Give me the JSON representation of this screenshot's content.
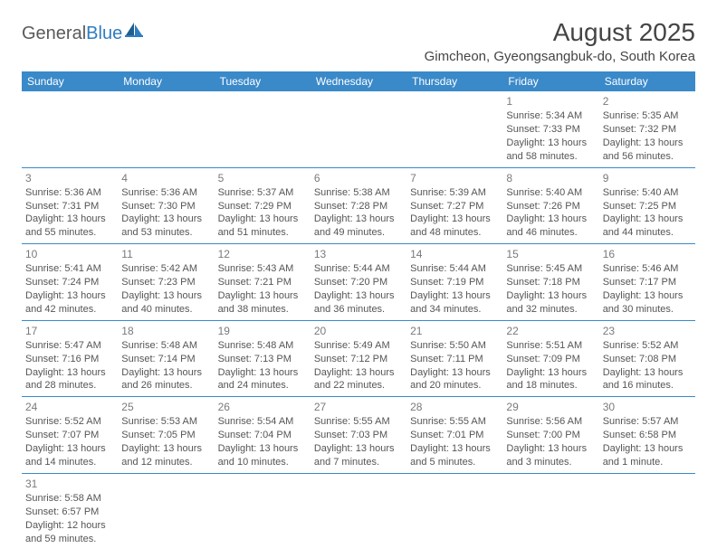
{
  "brand": {
    "general": "General",
    "blue": "Blue"
  },
  "title": "August 2025",
  "location": "Gimcheon, Gyeongsangbuk-do, South Korea",
  "colors": {
    "header_bg": "#3a89c9",
    "header_text": "#ffffff",
    "rule": "#3a89c9",
    "body_text": "#555555",
    "logo_blue": "#2f7cc0"
  },
  "dayHeaders": [
    "Sunday",
    "Monday",
    "Tuesday",
    "Wednesday",
    "Thursday",
    "Friday",
    "Saturday"
  ],
  "weeks": [
    [
      null,
      null,
      null,
      null,
      null,
      {
        "n": "1",
        "sr": "Sunrise: 5:34 AM",
        "ss": "Sunset: 7:33 PM",
        "d1": "Daylight: 13 hours",
        "d2": "and 58 minutes."
      },
      {
        "n": "2",
        "sr": "Sunrise: 5:35 AM",
        "ss": "Sunset: 7:32 PM",
        "d1": "Daylight: 13 hours",
        "d2": "and 56 minutes."
      }
    ],
    [
      {
        "n": "3",
        "sr": "Sunrise: 5:36 AM",
        "ss": "Sunset: 7:31 PM",
        "d1": "Daylight: 13 hours",
        "d2": "and 55 minutes."
      },
      {
        "n": "4",
        "sr": "Sunrise: 5:36 AM",
        "ss": "Sunset: 7:30 PM",
        "d1": "Daylight: 13 hours",
        "d2": "and 53 minutes."
      },
      {
        "n": "5",
        "sr": "Sunrise: 5:37 AM",
        "ss": "Sunset: 7:29 PM",
        "d1": "Daylight: 13 hours",
        "d2": "and 51 minutes."
      },
      {
        "n": "6",
        "sr": "Sunrise: 5:38 AM",
        "ss": "Sunset: 7:28 PM",
        "d1": "Daylight: 13 hours",
        "d2": "and 49 minutes."
      },
      {
        "n": "7",
        "sr": "Sunrise: 5:39 AM",
        "ss": "Sunset: 7:27 PM",
        "d1": "Daylight: 13 hours",
        "d2": "and 48 minutes."
      },
      {
        "n": "8",
        "sr": "Sunrise: 5:40 AM",
        "ss": "Sunset: 7:26 PM",
        "d1": "Daylight: 13 hours",
        "d2": "and 46 minutes."
      },
      {
        "n": "9",
        "sr": "Sunrise: 5:40 AM",
        "ss": "Sunset: 7:25 PM",
        "d1": "Daylight: 13 hours",
        "d2": "and 44 minutes."
      }
    ],
    [
      {
        "n": "10",
        "sr": "Sunrise: 5:41 AM",
        "ss": "Sunset: 7:24 PM",
        "d1": "Daylight: 13 hours",
        "d2": "and 42 minutes."
      },
      {
        "n": "11",
        "sr": "Sunrise: 5:42 AM",
        "ss": "Sunset: 7:23 PM",
        "d1": "Daylight: 13 hours",
        "d2": "and 40 minutes."
      },
      {
        "n": "12",
        "sr": "Sunrise: 5:43 AM",
        "ss": "Sunset: 7:21 PM",
        "d1": "Daylight: 13 hours",
        "d2": "and 38 minutes."
      },
      {
        "n": "13",
        "sr": "Sunrise: 5:44 AM",
        "ss": "Sunset: 7:20 PM",
        "d1": "Daylight: 13 hours",
        "d2": "and 36 minutes."
      },
      {
        "n": "14",
        "sr": "Sunrise: 5:44 AM",
        "ss": "Sunset: 7:19 PM",
        "d1": "Daylight: 13 hours",
        "d2": "and 34 minutes."
      },
      {
        "n": "15",
        "sr": "Sunrise: 5:45 AM",
        "ss": "Sunset: 7:18 PM",
        "d1": "Daylight: 13 hours",
        "d2": "and 32 minutes."
      },
      {
        "n": "16",
        "sr": "Sunrise: 5:46 AM",
        "ss": "Sunset: 7:17 PM",
        "d1": "Daylight: 13 hours",
        "d2": "and 30 minutes."
      }
    ],
    [
      {
        "n": "17",
        "sr": "Sunrise: 5:47 AM",
        "ss": "Sunset: 7:16 PM",
        "d1": "Daylight: 13 hours",
        "d2": "and 28 minutes."
      },
      {
        "n": "18",
        "sr": "Sunrise: 5:48 AM",
        "ss": "Sunset: 7:14 PM",
        "d1": "Daylight: 13 hours",
        "d2": "and 26 minutes."
      },
      {
        "n": "19",
        "sr": "Sunrise: 5:48 AM",
        "ss": "Sunset: 7:13 PM",
        "d1": "Daylight: 13 hours",
        "d2": "and 24 minutes."
      },
      {
        "n": "20",
        "sr": "Sunrise: 5:49 AM",
        "ss": "Sunset: 7:12 PM",
        "d1": "Daylight: 13 hours",
        "d2": "and 22 minutes."
      },
      {
        "n": "21",
        "sr": "Sunrise: 5:50 AM",
        "ss": "Sunset: 7:11 PM",
        "d1": "Daylight: 13 hours",
        "d2": "and 20 minutes."
      },
      {
        "n": "22",
        "sr": "Sunrise: 5:51 AM",
        "ss": "Sunset: 7:09 PM",
        "d1": "Daylight: 13 hours",
        "d2": "and 18 minutes."
      },
      {
        "n": "23",
        "sr": "Sunrise: 5:52 AM",
        "ss": "Sunset: 7:08 PM",
        "d1": "Daylight: 13 hours",
        "d2": "and 16 minutes."
      }
    ],
    [
      {
        "n": "24",
        "sr": "Sunrise: 5:52 AM",
        "ss": "Sunset: 7:07 PM",
        "d1": "Daylight: 13 hours",
        "d2": "and 14 minutes."
      },
      {
        "n": "25",
        "sr": "Sunrise: 5:53 AM",
        "ss": "Sunset: 7:05 PM",
        "d1": "Daylight: 13 hours",
        "d2": "and 12 minutes."
      },
      {
        "n": "26",
        "sr": "Sunrise: 5:54 AM",
        "ss": "Sunset: 7:04 PM",
        "d1": "Daylight: 13 hours",
        "d2": "and 10 minutes."
      },
      {
        "n": "27",
        "sr": "Sunrise: 5:55 AM",
        "ss": "Sunset: 7:03 PM",
        "d1": "Daylight: 13 hours",
        "d2": "and 7 minutes."
      },
      {
        "n": "28",
        "sr": "Sunrise: 5:55 AM",
        "ss": "Sunset: 7:01 PM",
        "d1": "Daylight: 13 hours",
        "d2": "and 5 minutes."
      },
      {
        "n": "29",
        "sr": "Sunrise: 5:56 AM",
        "ss": "Sunset: 7:00 PM",
        "d1": "Daylight: 13 hours",
        "d2": "and 3 minutes."
      },
      {
        "n": "30",
        "sr": "Sunrise: 5:57 AM",
        "ss": "Sunset: 6:58 PM",
        "d1": "Daylight: 13 hours",
        "d2": "and 1 minute."
      }
    ],
    [
      {
        "n": "31",
        "sr": "Sunrise: 5:58 AM",
        "ss": "Sunset: 6:57 PM",
        "d1": "Daylight: 12 hours",
        "d2": "and 59 minutes."
      },
      null,
      null,
      null,
      null,
      null,
      null
    ]
  ]
}
